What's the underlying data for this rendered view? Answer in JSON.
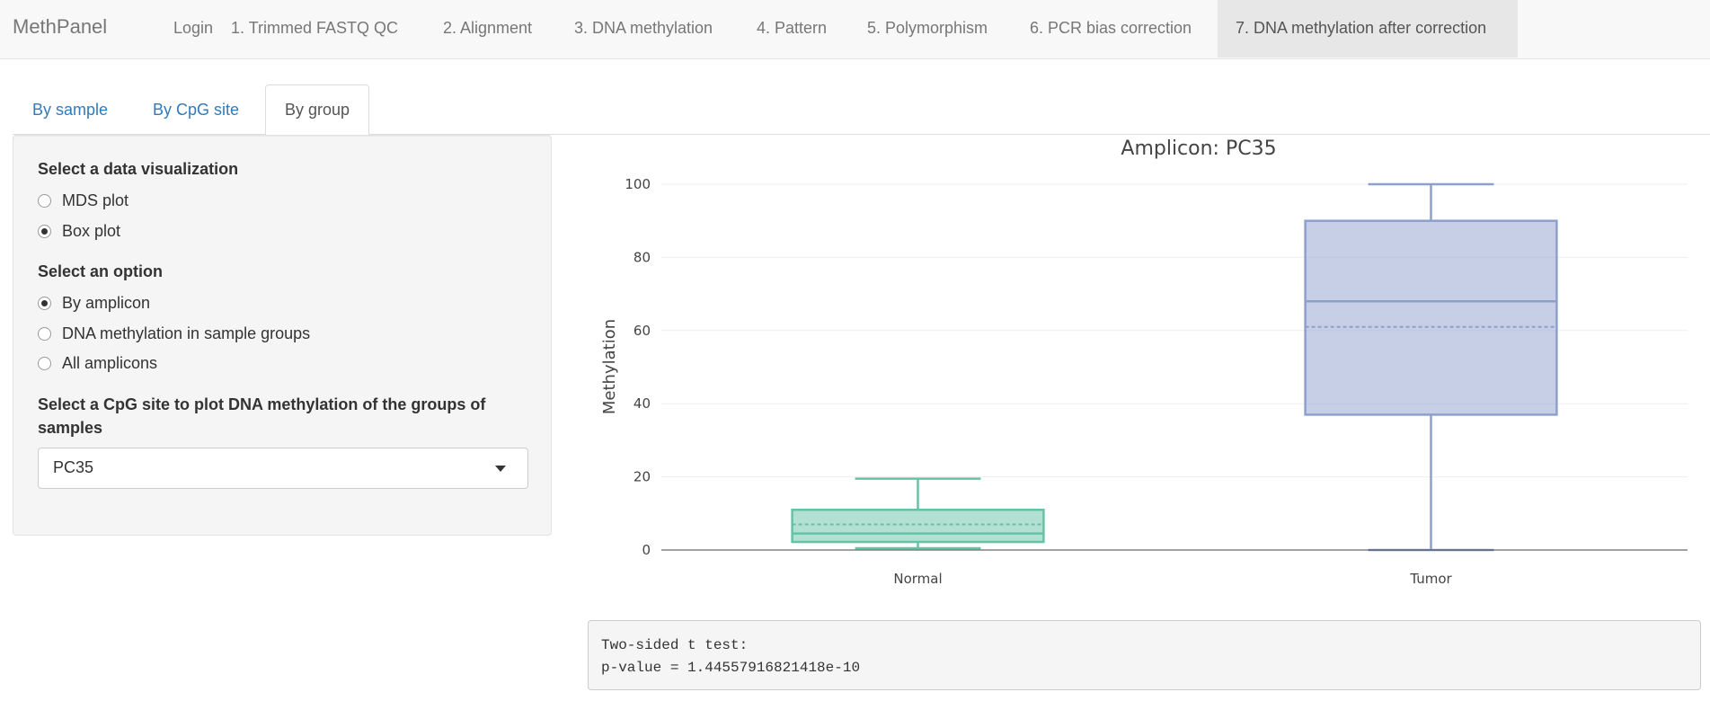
{
  "app": {
    "brand": "MethPanel"
  },
  "nav": {
    "items": [
      {
        "label": "Login"
      },
      {
        "label": "1. Trimmed FASTQ QC"
      },
      {
        "label": "2. Alignment"
      },
      {
        "label": "3. DNA methylation"
      },
      {
        "label": "4. Pattern"
      },
      {
        "label": "5. Polymorphism"
      },
      {
        "label": "6. PCR bias correction"
      },
      {
        "label": "7. DNA methylation after correction",
        "active": true
      }
    ]
  },
  "tabs": [
    {
      "label": "By sample"
    },
    {
      "label": "By CpG site"
    },
    {
      "label": "By group",
      "active": true
    }
  ],
  "sidebar": {
    "viz_label": "Select a data visualization",
    "viz_options": [
      {
        "label": "MDS plot",
        "checked": false
      },
      {
        "label": "Box plot",
        "checked": true
      }
    ],
    "option_label": "Select an option",
    "options": [
      {
        "label": "By amplicon",
        "checked": true
      },
      {
        "label": "DNA methylation in sample groups",
        "checked": false
      },
      {
        "label": "All amplicons",
        "checked": false
      }
    ],
    "cpg_label_line1": "Select a CpG site to plot DNA methylation of the groups of",
    "cpg_label_line2": "samples",
    "cpg_select_value": "PC35",
    "caret_icon": "caret-down-icon"
  },
  "chart_data": {
    "type": "box",
    "title": "Amplicon: PC35",
    "ylabel": "Methylation",
    "xlabel": "",
    "ylim": [
      0,
      100
    ],
    "yticks": [
      0,
      20,
      40,
      60,
      80,
      100
    ],
    "grid": true,
    "categories": [
      "Normal",
      "Tumor"
    ],
    "series": [
      {
        "category": "Normal",
        "min": 0.5,
        "q1": 2.2,
        "median": 4.5,
        "mean": 7,
        "q3": 11,
        "max": 19.5,
        "color": "#66c2a5"
      },
      {
        "category": "Tumor",
        "min": 0,
        "q1": 37,
        "median": 68,
        "mean": 61,
        "q3": 90,
        "max": 100,
        "color": "#8da0cb"
      }
    ]
  },
  "output": {
    "line1": "Two-sided t test:",
    "line2": "p-value = 1.44557916821418e-10"
  }
}
